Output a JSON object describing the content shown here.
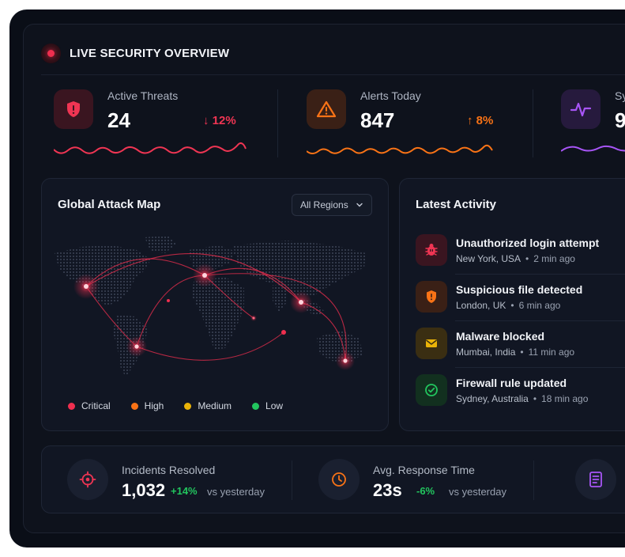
{
  "header": {
    "title": "LIVE SECURITY OVERVIEW"
  },
  "stats": [
    {
      "label": "Active Threats",
      "value": "24",
      "change": "↓ 12%",
      "color": "#ef3553",
      "icon": "shield-alert-icon"
    },
    {
      "label": "Alerts Today",
      "value": "847",
      "change": "↑ 8%",
      "color": "#f97316",
      "icon": "warning-triangle-icon"
    },
    {
      "label": "Sy",
      "value": "9",
      "color": "#a855f7",
      "icon": "activity-pulse-icon"
    }
  ],
  "map": {
    "title": "Global Attack Map",
    "region_select": "All Regions",
    "legend": [
      {
        "label": "Critical",
        "color": "#ef2f4f"
      },
      {
        "label": "High",
        "color": "#f97316"
      },
      {
        "label": "Medium",
        "color": "#eab308"
      },
      {
        "label": "Low",
        "color": "#22c55e"
      }
    ]
  },
  "activity": {
    "title": "Latest Activity",
    "items": [
      {
        "title": "Unauthorized login attempt",
        "location": "New York, USA",
        "time": "2 min ago",
        "icon": "bug-icon",
        "color": "#ef3553"
      },
      {
        "title": "Suspicious file detected",
        "location": "London, UK",
        "time": "6 min ago",
        "icon": "shield-warning-icon",
        "color": "#f97316"
      },
      {
        "title": "Malware blocked",
        "location": "Mumbai, India",
        "time": "11 min ago",
        "icon": "mail-icon",
        "color": "#eab308"
      },
      {
        "title": "Firewall rule updated",
        "location": "Sydney, Australia",
        "time": "18 min ago",
        "icon": "check-circle-icon",
        "color": "#22c55e"
      }
    ]
  },
  "bottom": [
    {
      "label": "Incidents Resolved",
      "value": "1,032",
      "change": "+14%",
      "vs": "vs yesterday",
      "icon": "target-icon",
      "color": "#ef3553"
    },
    {
      "label": "Avg. Response Time",
      "value": "23s",
      "change": "-6%",
      "vs": "vs yesterday",
      "icon": "clock-icon",
      "color": "#f97316"
    },
    {
      "icon": "report-icon",
      "color": "#a855f7"
    }
  ]
}
